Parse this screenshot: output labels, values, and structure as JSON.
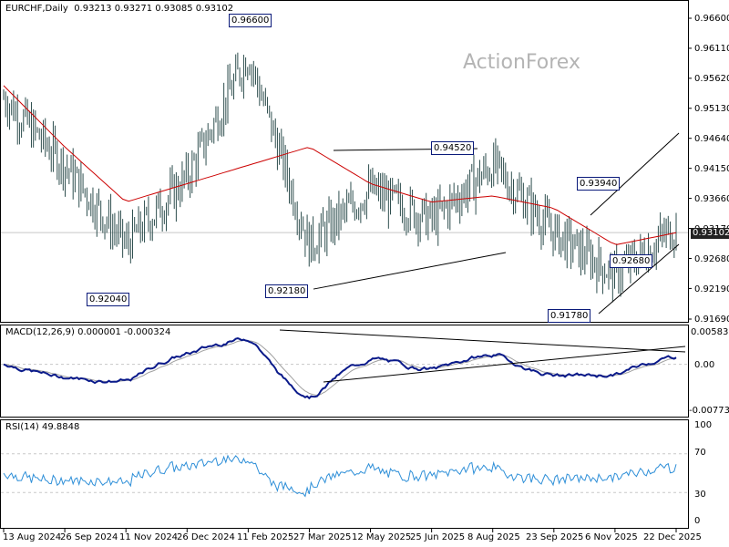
{
  "main_pane": {
    "symbol_title": "EURCHF,Daily",
    "ohlc_text": "0.93213 0.93271 0.93085 0.93102",
    "watermark": "ActionForex",
    "y_ticks": [
      "0.96600",
      "0.96110",
      "0.95620",
      "0.95130",
      "0.94640",
      "0.94150",
      "0.93660",
      "0.93170",
      "0.92680",
      "0.92190",
      "0.91690"
    ],
    "current_price": "0.93102",
    "price_labels": [
      "0.96600",
      "0.94520",
      "0.93940",
      "0.92040",
      "0.92180",
      "0.91780",
      "0.92680"
    ]
  },
  "macd_pane": {
    "title": "MACD(12,26,9) 0.000001 -0.000324",
    "y_ticks": [
      "0.005838",
      "0.00",
      "-0.007735"
    ]
  },
  "rsi_pane": {
    "title": "RSI(14) 49.8848",
    "y_ticks": [
      "100",
      "70",
      "30",
      "0"
    ]
  },
  "x_axis": {
    "labels": [
      "13 Aug 2024",
      "26 Sep 2024",
      "11 Nov 2024",
      "26 Dec 2024",
      "11 Feb 2025",
      "27 Mar 2025",
      "12 May 2025",
      "25 Jun 2025",
      "8 Aug 2025",
      "23 Sep 2025",
      "6 Nov 2025",
      "22 Dec 2025"
    ]
  },
  "colors": {
    "price_bars": "#2f4f4f",
    "moving_average": "#cc0000",
    "macd_line": "#0a1a8a",
    "signal_line": "#a0a0a0",
    "rsi_line": "#2e8fd8",
    "trendlines": "#000000",
    "grid": "#c8c8c8"
  },
  "chart_data": [
    {
      "type": "line",
      "title": "EURCHF,Daily",
      "subtitle": "0.93213 0.93271 0.93085 0.93102",
      "series": [
        {
          "x": [
            "13 Aug 2024",
            "26 Sep 2024",
            "11 Nov 2024",
            "26 Dec 2024",
            "11 Feb 2025",
            "27 Mar 2025",
            "12 May 2025",
            "25 Jun 2025",
            "8 Aug 2025",
            "23 Sep 2025",
            "6 Nov 2025",
            "22 Dec 2025"
          ],
          "values": [
            0.953,
            0.942,
            0.929,
            0.94,
            0.96,
            0.929,
            0.938,
            0.933,
            0.942,
            0.931,
            0.924,
            0.932
          ]
        },
        {
          "x": [
            "13 Aug 2024",
            "26 Sep 2024",
            "11 Nov 2024",
            "26 Dec 2024",
            "11 Feb 2025",
            "27 Mar 2025",
            "12 May 2025",
            "25 Jun 2025",
            "8 Aug 2025",
            "23 Sep 2025",
            "6 Nov 2025",
            "22 Dec 2025"
          ],
          "values": [
            0.955,
            0.945,
            0.936,
            0.939,
            0.942,
            0.945,
            0.939,
            0.936,
            0.937,
            0.935,
            0.929,
            0.931
          ]
        }
      ],
      "annotations": [
        "0.96600",
        "0.94520",
        "0.93940",
        "0.92040",
        "0.92180",
        "0.91780",
        "0.92680"
      ],
      "ylim": [
        0.9169,
        0.966
      ]
    },
    {
      "type": "line",
      "title": "MACD(12,26,9) 0.000001 -0.000324",
      "ylim": [
        -0.007735,
        0.005838
      ]
    },
    {
      "type": "line",
      "title": "RSI(14) 49.8848",
      "ylim": [
        0,
        100
      ],
      "reference_levels": [
        70,
        30
      ]
    }
  ]
}
